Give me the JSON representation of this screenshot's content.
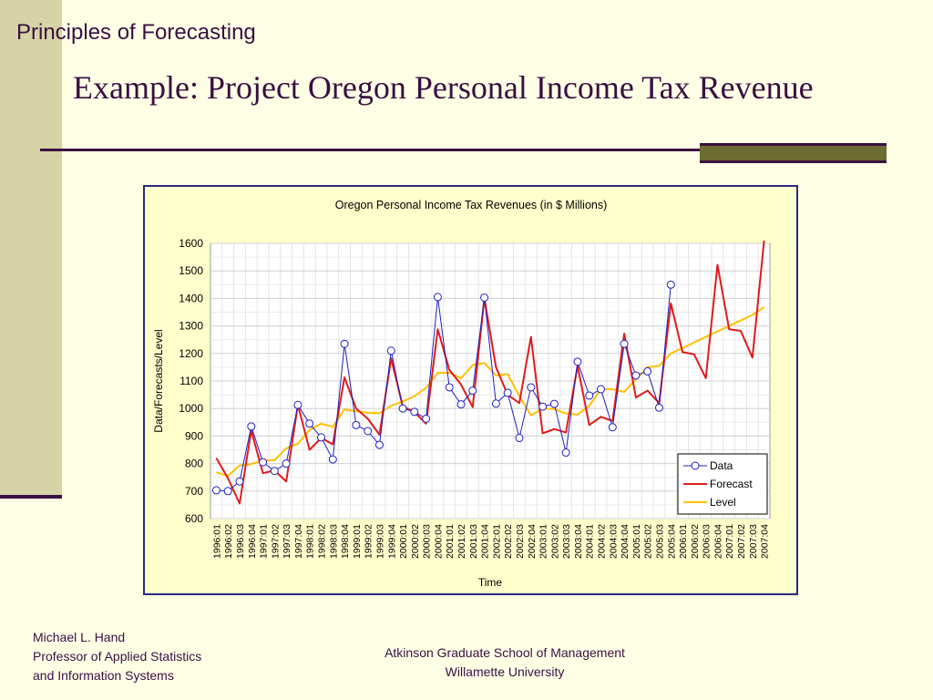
{
  "slide": {
    "course_title": "Principles of Forecasting",
    "title": "Example: Project Oregon Personal Income Tax Revenue",
    "footer_left": [
      "Michael L. Hand",
      "Professor of Applied Statistics",
      "and Information Systems"
    ],
    "footer_center": [
      "Atkinson Graduate School of Management",
      "Willamette University"
    ]
  },
  "chart_data": {
    "type": "line",
    "title": "Oregon Personal Income Tax Revenues (in $ Millions)",
    "xlabel": "Time",
    "ylabel": "Data/Forecasts/Level",
    "ylim": [
      600,
      1600
    ],
    "yticks": [
      600,
      700,
      800,
      900,
      1000,
      1100,
      1200,
      1300,
      1400,
      1500,
      1600
    ],
    "grid": true,
    "legend_position": "bottom-right",
    "categories": [
      "1996:01",
      "1996:02",
      "1996:03",
      "1996:04",
      "1997:01",
      "1997:02",
      "1997:03",
      "1997:04",
      "1998:01",
      "1998:02",
      "1998:03",
      "1998:04",
      "1999:01",
      "1999:02",
      "1999:03",
      "1999:04",
      "2000:01",
      "2000:02",
      "2000:03",
      "2000:04",
      "2001:01",
      "2001:02",
      "2001:03",
      "2001:04",
      "2002:01",
      "2002:02",
      "2002:03",
      "2002:04",
      "2003:01",
      "2003:02",
      "2003:03",
      "2003:04",
      "2004:01",
      "2004:02",
      "2004:03",
      "2004:04",
      "2005:01",
      "2005:02",
      "2005:03",
      "2005:04",
      "2006:01",
      "2006:02",
      "2006:03",
      "2006:04",
      "2007:01",
      "2007:02",
      "2007:03",
      "2007:04"
    ],
    "series": [
      {
        "name": "Data",
        "color": "#1F1FBF",
        "marker": "circle",
        "values": [
          703,
          700,
          735,
          935,
          805,
          773,
          800,
          1013,
          945,
          895,
          815,
          1235,
          940,
          918,
          868,
          1210,
          1000,
          988,
          963,
          1405,
          1077,
          1015,
          1065,
          1403,
          1018,
          1057,
          893,
          1077,
          1007,
          1017,
          840,
          1170,
          1047,
          1070,
          932,
          1235,
          1120,
          1135,
          1003,
          1450,
          null,
          null,
          null,
          null,
          null,
          null,
          null,
          null
        ]
      },
      {
        "name": "Forecast",
        "color": "#E01B1B",
        "marker": "none",
        "values": [
          820,
          747,
          655,
          920,
          765,
          775,
          735,
          1013,
          850,
          893,
          870,
          1113,
          1000,
          963,
          905,
          1182,
          1008,
          987,
          945,
          1288,
          1140,
          1087,
          1005,
          1400,
          1150,
          1050,
          1020,
          1260,
          910,
          925,
          913,
          1155,
          940,
          970,
          955,
          1272,
          1040,
          1065,
          1020,
          1382,
          1205,
          1197,
          1110,
          1522,
          1288,
          1282,
          1185,
          1610
        ]
      },
      {
        "name": "Level",
        "color": "#FFC000",
        "marker": "none",
        "values": [
          768,
          755,
          793,
          798,
          812,
          812,
          855,
          872,
          922,
          945,
          933,
          997,
          990,
          985,
          983,
          1010,
          1025,
          1045,
          1075,
          1130,
          1130,
          1110,
          1158,
          1165,
          1120,
          1125,
          1045,
          975,
          1000,
          998,
          982,
          978,
          1010,
          1070,
          1070,
          1060,
          1107,
          1150,
          1155,
          1200,
          1220,
          1240,
          1260,
          1280,
          1300,
          1320,
          1340,
          1368
        ]
      }
    ]
  }
}
